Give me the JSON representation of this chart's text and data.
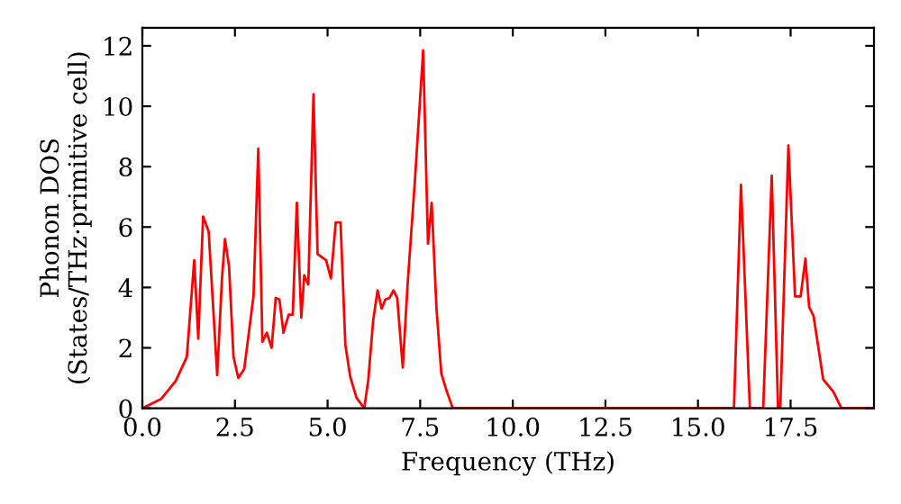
{
  "chart_data": {
    "type": "line",
    "xlabel": "Frequency (THz)",
    "ylabel": "Phonon DOS\n(States/THz·primitive cell)",
    "xlim": [
      0,
      19.75
    ],
    "ylim": [
      0,
      12.6
    ],
    "xticks": [
      {
        "value": 0,
        "label": "0.0"
      },
      {
        "value": 2.5,
        "label": "2.5"
      },
      {
        "value": 5,
        "label": "5.0"
      },
      {
        "value": 7.5,
        "label": "7.5"
      },
      {
        "value": 10,
        "label": "10.0"
      },
      {
        "value": 12.5,
        "label": "12.5"
      },
      {
        "value": 15,
        "label": "15.0"
      },
      {
        "value": 17.5,
        "label": "17.5"
      }
    ],
    "yticks": [
      0,
      2,
      4,
      6,
      8,
      10,
      12
    ],
    "grid": false,
    "marker": "none",
    "line_style": "solid",
    "series": [
      {
        "color": "#ff0000",
        "x": [
          0,
          0.5,
          0.9,
          1.2,
          1.4,
          1.51,
          1.64,
          1.79,
          2.02,
          2.15,
          2.23,
          2.34,
          2.46,
          2.59,
          2.75,
          3.0,
          3.13,
          3.24,
          3.36,
          3.49,
          3.6,
          3.7,
          3.81,
          3.95,
          4.06,
          4.17,
          4.29,
          4.37,
          4.48,
          4.62,
          4.73,
          4.96,
          5.09,
          5.22,
          5.35,
          5.48,
          5.61,
          5.78,
          5.99,
          6.1,
          6.23,
          6.35,
          6.46,
          6.56,
          6.67,
          6.78,
          6.88,
          7.03,
          7.16,
          7.35,
          7.58,
          7.71,
          7.81,
          7.94,
          8.07,
          8.22,
          8.38,
          15.97,
          16.16,
          16.4,
          16.76,
          16.99,
          17.16,
          17.22,
          17.44,
          17.62,
          17.77,
          17.9,
          18.0,
          18.12,
          18.38,
          18.65,
          18.87,
          19.75
        ],
        "values": [
          0,
          0.3,
          0.9,
          1.7,
          4.9,
          2.3,
          6.35,
          5.85,
          1.1,
          4.3,
          5.6,
          4.7,
          1.7,
          1.0,
          1.3,
          3.7,
          8.6,
          2.2,
          2.5,
          2.0,
          3.65,
          3.6,
          2.5,
          3.1,
          3.1,
          6.8,
          3.0,
          4.4,
          4.1,
          10.4,
          5.1,
          4.9,
          4.3,
          6.15,
          6.15,
          2.1,
          1.05,
          0.35,
          0,
          0.95,
          2.9,
          3.9,
          3.3,
          3.6,
          3.65,
          3.9,
          3.65,
          1.35,
          4.1,
          7.4,
          11.85,
          5.45,
          6.8,
          3.3,
          1.15,
          0.55,
          0,
          0,
          7.4,
          0,
          0,
          7.7,
          0,
          0,
          8.7,
          3.7,
          3.7,
          4.95,
          3.35,
          3.05,
          0.95,
          0.55,
          0,
          0
        ]
      }
    ]
  }
}
